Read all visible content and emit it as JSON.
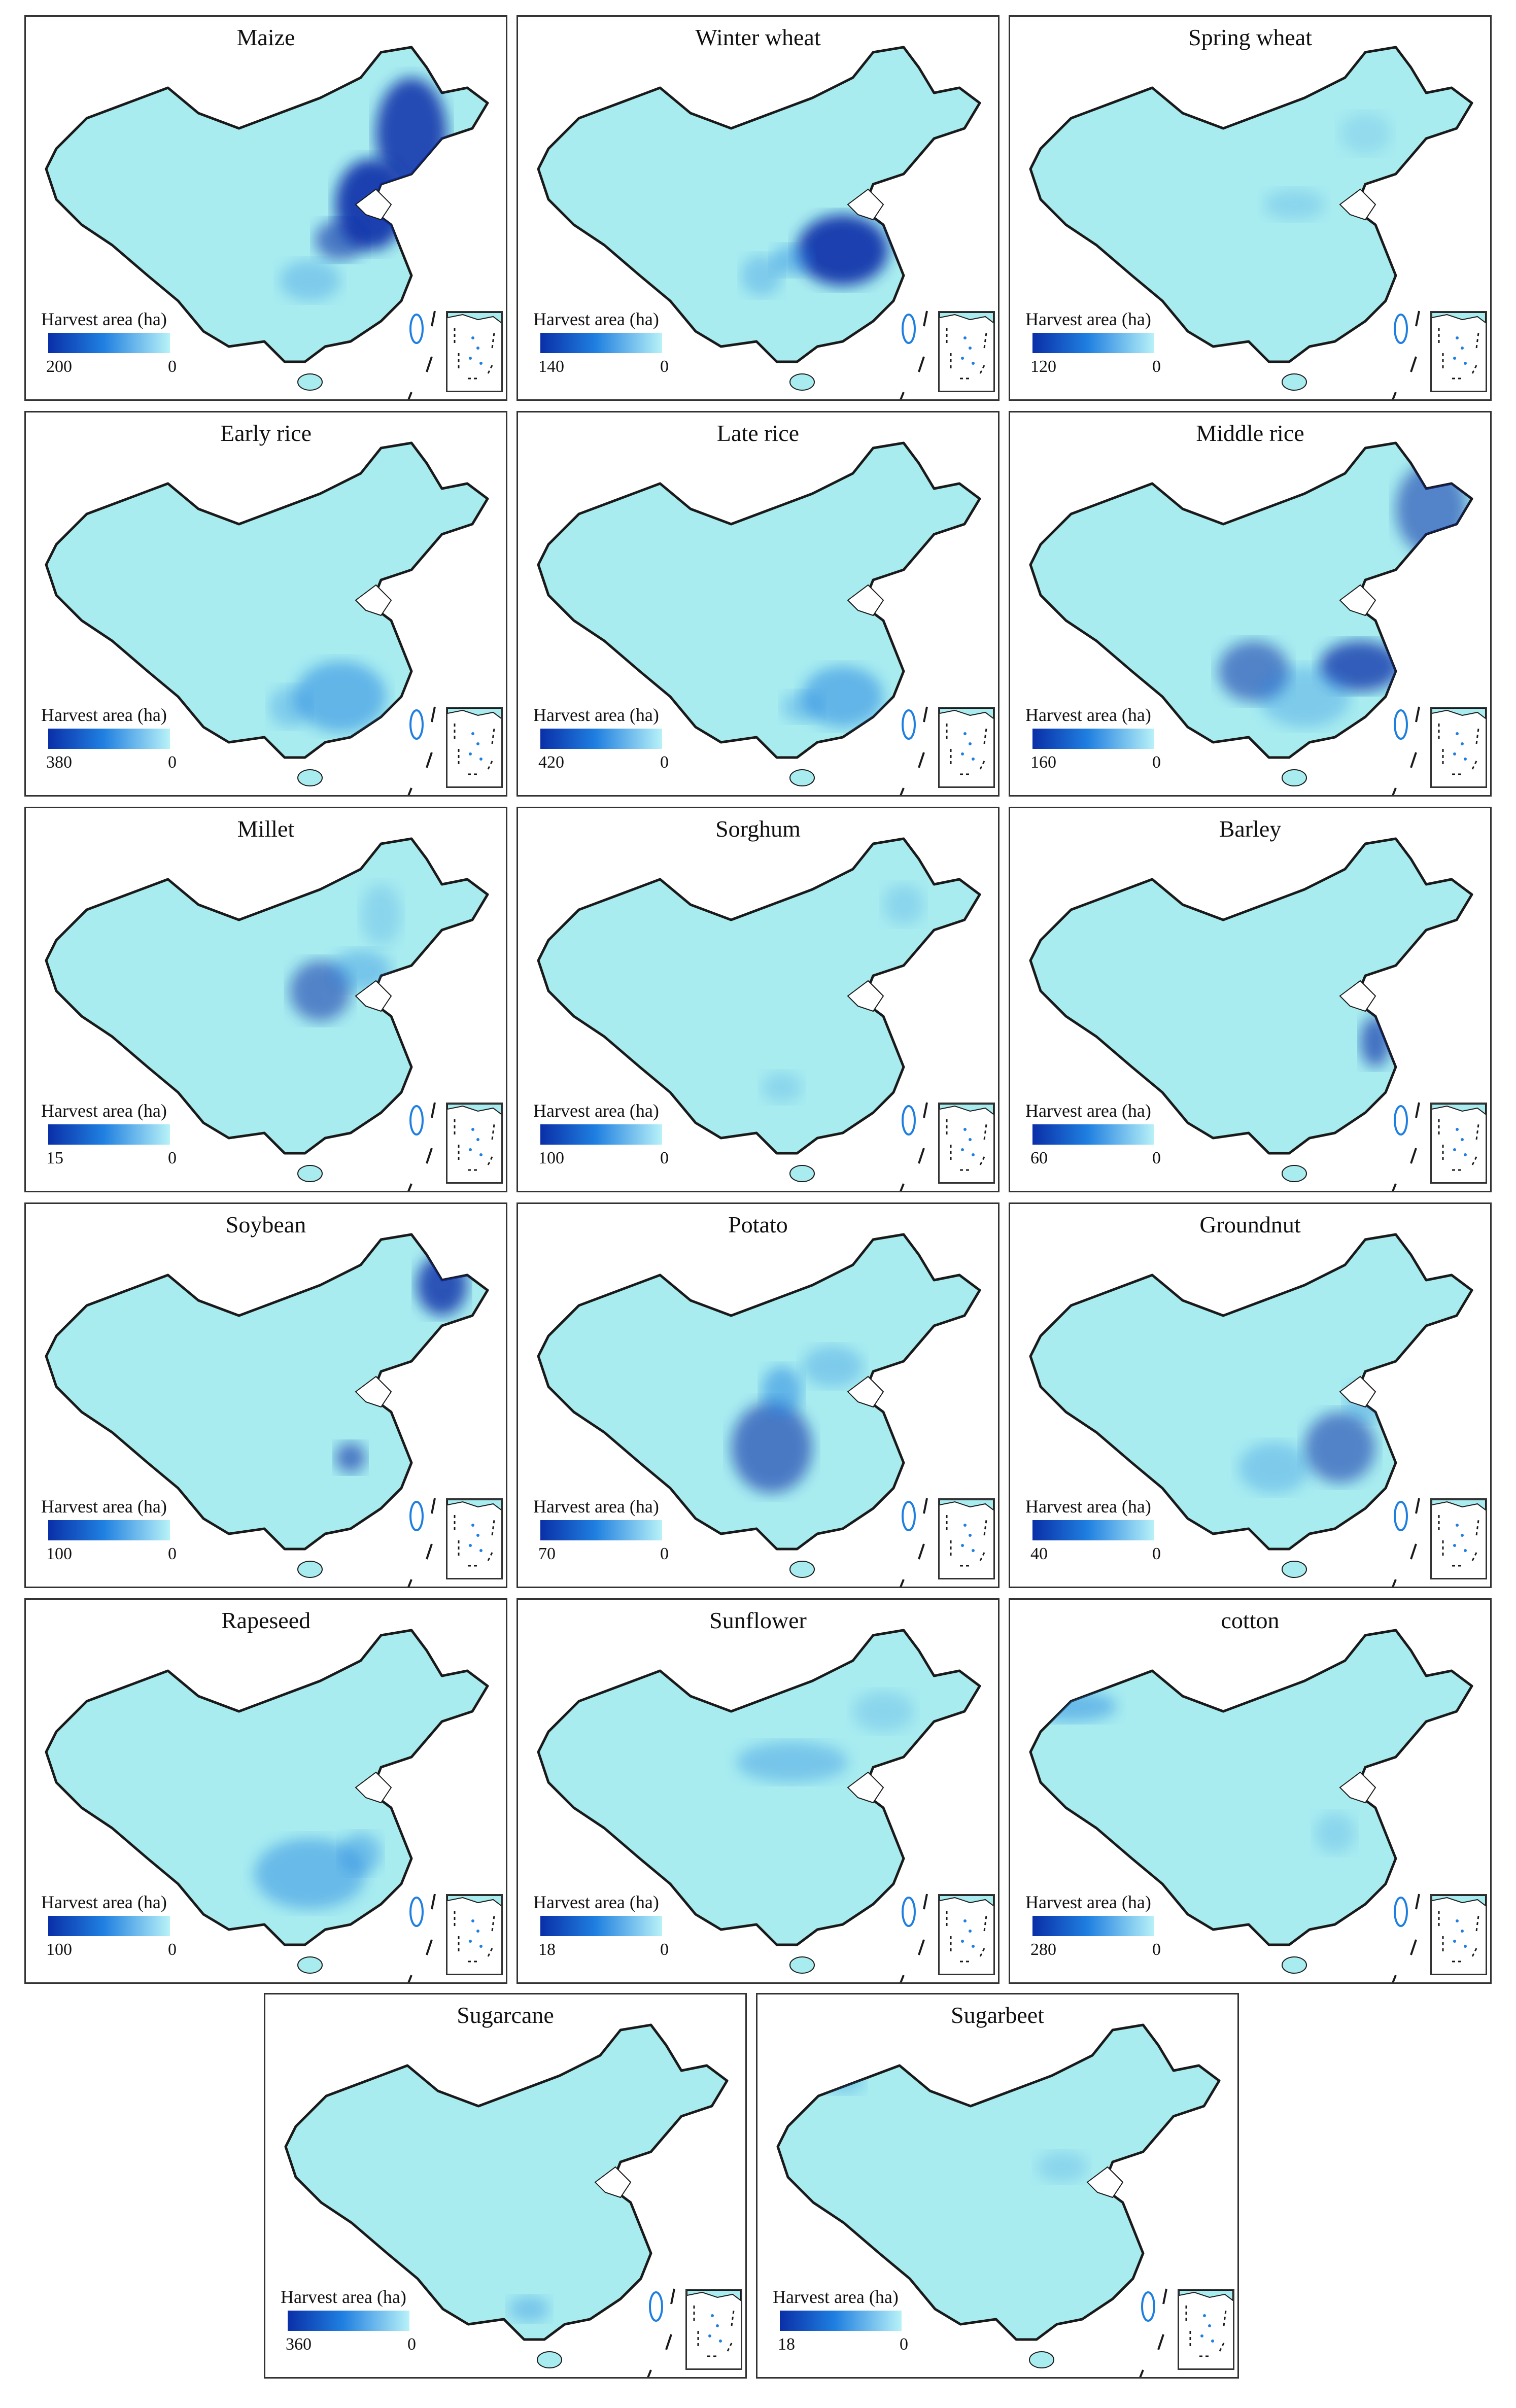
{
  "legend_title": "Harvest area (ha)",
  "colors": {
    "fill": "#a8ecf0",
    "outline": "#1a1a1a",
    "high": "#0a2fa8",
    "mid": "#1f7fe0",
    "low": "#b8f2f8"
  },
  "panels": [
    {
      "title": "Maize",
      "max": "200",
      "min": "0"
    },
    {
      "title": "Winter wheat",
      "max": "140",
      "min": "0"
    },
    {
      "title": "Spring wheat",
      "max": "120",
      "min": "0"
    },
    {
      "title": "Early rice",
      "max": "380",
      "min": "0"
    },
    {
      "title": "Late rice",
      "max": "420",
      "min": "0"
    },
    {
      "title": "Middle rice",
      "max": "160",
      "min": "0"
    },
    {
      "title": "Millet",
      "max": "15",
      "min": "0"
    },
    {
      "title": "Sorghum",
      "max": "100",
      "min": "0"
    },
    {
      "title": "Barley",
      "max": "60",
      "min": "0"
    },
    {
      "title": "Soybean",
      "max": "100",
      "min": "0"
    },
    {
      "title": "Potato",
      "max": "70",
      "min": "0"
    },
    {
      "title": "Groundnut",
      "max": "40",
      "min": "0"
    },
    {
      "title": "Rapeseed",
      "max": "100",
      "min": "0"
    },
    {
      "title": "Sunflower",
      "max": "18",
      "min": "0"
    },
    {
      "title": "cotton",
      "max": "280",
      "min": "0"
    },
    {
      "title": "Sugarcane",
      "max": "360",
      "min": "0"
    },
    {
      "title": "Sugarbeet",
      "max": "18",
      "min": "0"
    }
  ]
}
